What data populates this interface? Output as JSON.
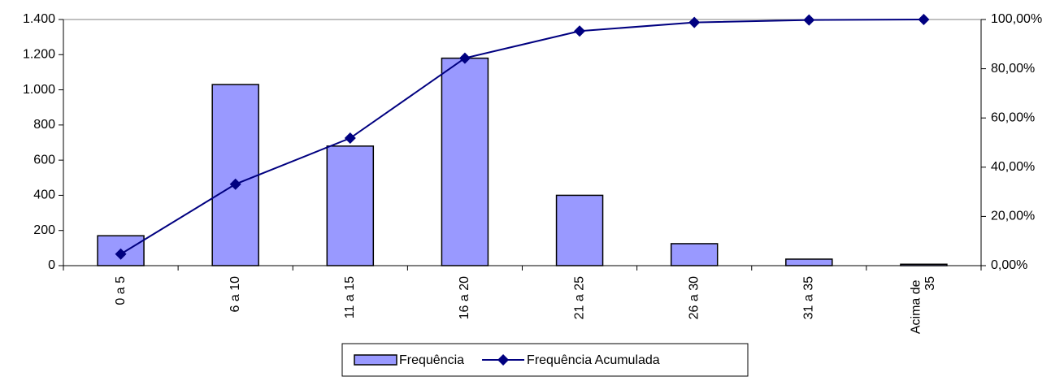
{
  "chart_data": {
    "type": "bar_line",
    "categories": [
      "0 a 5",
      "6 a 10",
      "11 a 15",
      "16 a 20",
      "21 a 25",
      "26 a 30",
      "31 a 35",
      "Acima de 35"
    ],
    "series": [
      {
        "name": "Frequência",
        "type": "bar",
        "color": "#9999ff",
        "values": [
          170,
          1030,
          680,
          1180,
          400,
          125,
          37,
          8
        ]
      },
      {
        "name": "Frequência Acumulada",
        "type": "line",
        "axis": "y2",
        "color": "#000080",
        "values": [
          4.7,
          33.1,
          51.8,
          84.3,
          95.3,
          98.8,
          99.8,
          100
        ]
      }
    ],
    "ylim": [
      0,
      1400
    ],
    "yticks": [
      0,
      200,
      400,
      600,
      800,
      {
        "value": 1000,
        "label": "1.000"
      },
      {
        "value": 1200,
        "label": "1.200"
      },
      {
        "value": 1400,
        "label": "1.400"
      }
    ],
    "y2lim": [
      0,
      100
    ],
    "y2ticks": [
      {
        "value": 0,
        "label": "0,00%"
      },
      {
        "value": 20,
        "label": "20,00%"
      },
      {
        "value": 40,
        "label": "40,00%"
      },
      {
        "value": 60,
        "label": "60,00%"
      },
      {
        "value": 80,
        "label": "80,00%"
      },
      {
        "value": 100,
        "label": "100,00%"
      }
    ],
    "legend": "bottom"
  }
}
